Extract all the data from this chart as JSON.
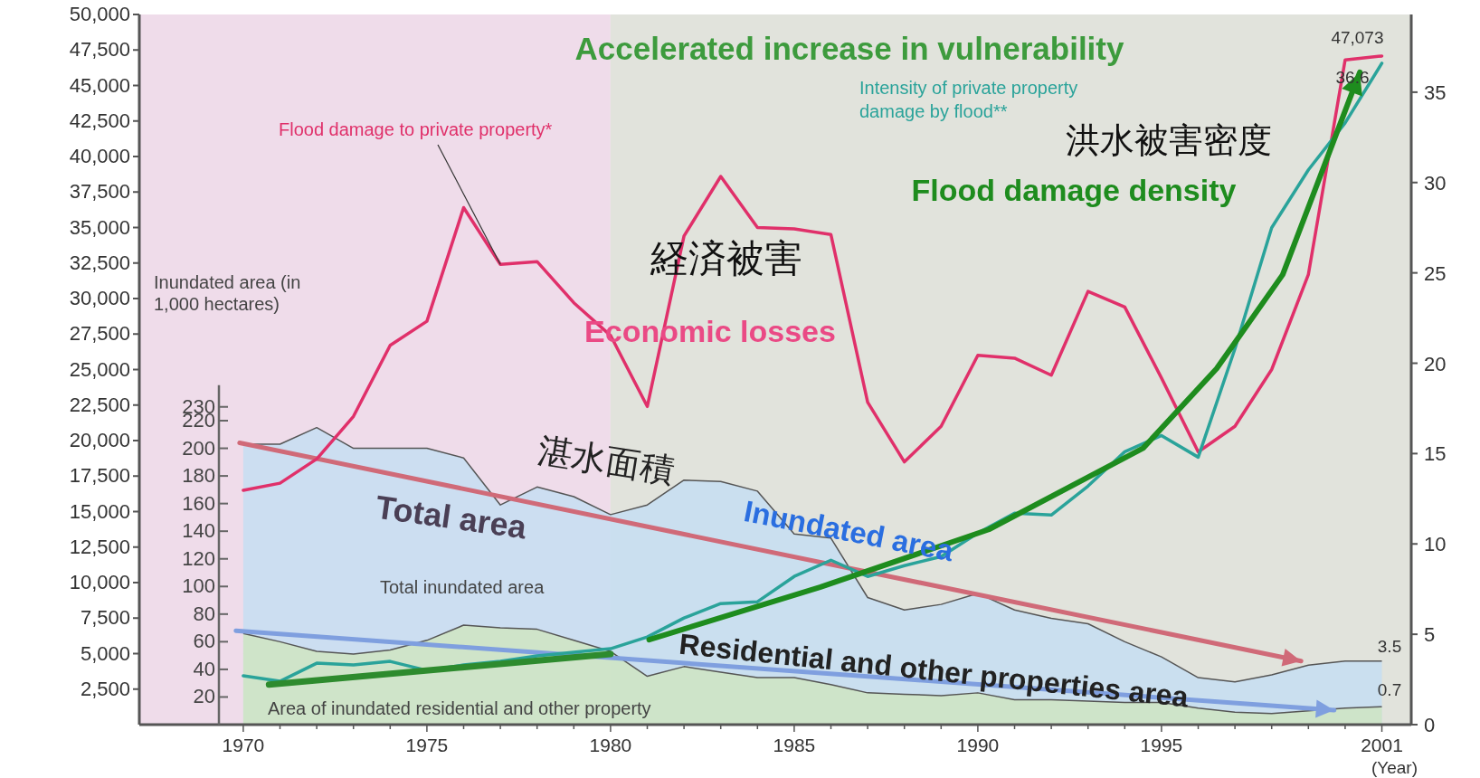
{
  "chart_data": {
    "type": "line",
    "xlabel": "(Year)",
    "y3label": "Inundated area (in 1,000 hectares)",
    "x": [
      1970,
      1971,
      1972,
      1973,
      1974,
      1975,
      1976,
      1977,
      1978,
      1979,
      1980,
      1981,
      1982,
      1983,
      1984,
      1985,
      1986,
      1987,
      1988,
      1989,
      1990,
      1991,
      1992,
      1993,
      1994,
      1995,
      1996,
      1997,
      1998,
      1999,
      2000,
      2001
    ],
    "xlim": [
      1967.17,
      2001.8
    ],
    "xticks": [
      1970,
      {
        "value": 1971,
        "label": null
      },
      {
        "value": 1972,
        "label": null
      },
      {
        "value": 1973,
        "label": null
      },
      {
        "value": 1974,
        "label": null
      },
      1975,
      {
        "value": 1976,
        "label": null
      },
      {
        "value": 1977,
        "label": null
      },
      {
        "value": 1978,
        "label": null
      },
      {
        "value": 1979,
        "label": null
      },
      1980,
      {
        "value": 1981,
        "label": null
      },
      {
        "value": 1982,
        "label": null
      },
      {
        "value": 1983,
        "label": null
      },
      {
        "value": 1984,
        "label": null
      },
      1985,
      {
        "value": 1986,
        "label": null
      },
      {
        "value": 1987,
        "label": null
      },
      {
        "value": 1988,
        "label": null
      },
      {
        "value": 1989,
        "label": null
      },
      1990,
      {
        "value": 1991,
        "label": null
      },
      {
        "value": 1992,
        "label": null
      },
      {
        "value": 1993,
        "label": null
      },
      {
        "value": 1994,
        "label": null
      },
      1995,
      {
        "value": 1996,
        "label": null
      },
      {
        "value": 1997,
        "label": null
      },
      {
        "value": 1998,
        "label": null
      },
      {
        "value": 1999,
        "label": null
      },
      {
        "value": 2000,
        "label": null
      },
      2001
    ],
    "ylim": [
      0,
      50000
    ],
    "yticks": [
      {
        "value": 2500,
        "label": "2,500"
      },
      {
        "value": 5000,
        "label": "5,000"
      },
      {
        "value": 7500,
        "label": "7,500"
      },
      {
        "value": 10000,
        "label": "10,000"
      },
      {
        "value": 12500,
        "label": "12,500"
      },
      {
        "value": 15000,
        "label": "15,000"
      },
      {
        "value": 17500,
        "label": "17,500"
      },
      {
        "value": 20000,
        "label": "20,000"
      },
      {
        "value": 22500,
        "label": "22,500"
      },
      {
        "value": 25000,
        "label": "25,000"
      },
      {
        "value": 27500,
        "label": "27,500"
      },
      {
        "value": 30000,
        "label": "30,000"
      },
      {
        "value": 32500,
        "label": "32,500"
      },
      {
        "value": 35000,
        "label": "35,000"
      },
      {
        "value": 37500,
        "label": "37,500"
      },
      {
        "value": 40000,
        "label": "40,000"
      },
      {
        "value": 42500,
        "label": "42,500"
      },
      {
        "value": 45000,
        "label": "45,000"
      },
      {
        "value": 47500,
        "label": "47,500"
      },
      {
        "value": 50000,
        "label": "50,000"
      }
    ],
    "y2lim": [
      0,
      39.3
    ],
    "y2ticks": [
      0,
      5,
      10,
      15,
      20,
      25,
      30,
      35
    ],
    "y3lim": [
      0,
      514
    ],
    "y3ticks": [
      20,
      40,
      60,
      80,
      100,
      120,
      140,
      160,
      180,
      200,
      220,
      230
    ],
    "bands": [
      {
        "axis": "x",
        "from": 1967.17,
        "to": 1980,
        "color": "#efdcea"
      },
      {
        "axis": "x",
        "from": 1980,
        "to": 2001.8,
        "color": "#e1e3dc"
      }
    ],
    "series": [
      {
        "name": "Total inundated area",
        "type": "area",
        "axis": "y3",
        "color": "#c6def2",
        "values": [
          203,
          203,
          215,
          200,
          200,
          200,
          193,
          159,
          172,
          165,
          152,
          159,
          177,
          176,
          169,
          138,
          135,
          92,
          83,
          87,
          95,
          83,
          77,
          73,
          60,
          49,
          34,
          31,
          36,
          43,
          46,
          46
        ]
      },
      {
        "name": "Area of inundated residential and other property",
        "type": "area",
        "axis": "y3",
        "color": "#cfe5c2",
        "values": [
          66,
          60,
          53,
          51,
          54,
          61,
          72,
          70,
          69,
          61,
          53,
          35,
          42,
          38,
          34,
          34,
          29,
          23,
          22,
          21,
          23,
          18,
          18,
          17,
          16,
          16,
          12,
          9,
          8,
          10,
          12,
          13
        ]
      },
      {
        "name": "Flood damage to private property*",
        "type": "line",
        "axis": "y",
        "color": "#e0306a",
        "values": [
          16500,
          17000,
          18700,
          21700,
          26700,
          28400,
          36400,
          32400,
          32600,
          29700,
          27400,
          22400,
          34400,
          38600,
          35000,
          34900,
          34500,
          22700,
          18500,
          21000,
          26000,
          25800,
          24600,
          30500,
          29400,
          24400,
          19200,
          21000,
          25000,
          31700,
          46800,
          47073
        ],
        "value_labels": [
          null,
          null,
          null,
          null,
          null,
          null,
          null,
          null,
          null,
          null,
          null,
          null,
          null,
          null,
          null,
          null,
          null,
          null,
          null,
          null,
          null,
          null,
          null,
          null,
          null,
          null,
          null,
          null,
          null,
          null,
          null,
          "47,073"
        ]
      },
      {
        "name": "Intensity of private property damage by flood**",
        "type": "line",
        "axis": "y2",
        "color": "#2aa39a",
        "values": [
          2.7,
          2.4,
          3.4,
          3.3,
          3.5,
          3.0,
          3.3,
          3.5,
          3.8,
          4.0,
          4.2,
          4.85,
          5.9,
          6.7,
          6.8,
          8.2,
          9.1,
          8.2,
          8.8,
          9.3,
          10.6,
          11.7,
          11.6,
          13.2,
          15.1,
          16.0,
          14.8,
          20.8,
          27.5,
          30.7,
          33.3,
          36.6
        ],
        "value_labels": [
          null,
          null,
          null,
          null,
          null,
          null,
          null,
          null,
          null,
          null,
          null,
          null,
          null,
          null,
          null,
          null,
          null,
          null,
          null,
          null,
          null,
          null,
          null,
          null,
          null,
          null,
          null,
          null,
          null,
          null,
          null,
          "36.6"
        ]
      }
    ],
    "annotations": [
      "Accelerated increase in vulnerability",
      "経済被害",
      "Economic losses",
      "洪水被害密度",
      "Flood damage density",
      "湛水面積",
      "Inundated area",
      "Total area",
      "Residential and other properties area",
      "3.5",
      "0.7"
    ]
  }
}
